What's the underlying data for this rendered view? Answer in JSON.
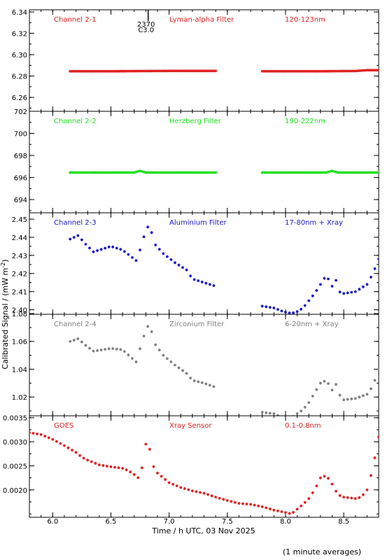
{
  "chart_data": {
    "type": "scatter",
    "xlabel": "Time / h UTC, 03 Nov 2025",
    "ylabel": "Calibrated Signal / (mW m",
    "ylabel_sup": "-2",
    "ylabel_close": ")",
    "footnote": "(1 minute averages)",
    "xlim": [
      5.8,
      8.8
    ],
    "xticks": [
      6.0,
      6.5,
      7.0,
      7.5,
      8.0,
      8.5
    ],
    "xtick_labels": [
      "6.0",
      "6.5",
      "7.0",
      "7.5",
      "8.0",
      "8.5"
    ],
    "marker_annotation": {
      "x": 6.82,
      "line1": "2370",
      "line2": "C3.0"
    },
    "panels": [
      {
        "name": "Channel 2-1",
        "filter": "Lyman-alpha Filter",
        "band": "120-123nm",
        "color": "#e02020",
        "ylim": [
          6.247,
          6.342
        ],
        "yticks": [
          6.26,
          6.28,
          6.3,
          6.32,
          6.34
        ],
        "ytick_labels": [
          "6.26",
          "6.28",
          "6.30",
          "6.32",
          "6.34"
        ],
        "series": [
          {
            "x": [
              6.15,
              6.5,
              7.0,
              7.4
            ],
            "y": [
              6.2845,
              6.2845,
              6.2848,
              6.2848
            ]
          },
          {
            "x": [
              7.8,
              8.3,
              8.6,
              8.7,
              8.8
            ],
            "y": [
              6.2845,
              6.2845,
              6.2847,
              6.2855,
              6.2855
            ]
          }
        ]
      },
      {
        "name": "Channel 2-2",
        "filter": "Herzberg Filter",
        "band": "190-222nm",
        "color": "#20e020",
        "ylim": [
          692.8,
          702.0
        ],
        "yticks": [
          694,
          696,
          698,
          700,
          702
        ],
        "ytick_labels": [
          "694",
          "696",
          "698",
          "700",
          "702"
        ],
        "series": [
          {
            "x": [
              6.15,
              6.7,
              6.75,
              6.8,
              7.4
            ],
            "y": [
              696.45,
              696.45,
              696.6,
              696.45,
              696.45
            ]
          },
          {
            "x": [
              7.8,
              8.35,
              8.4,
              8.45,
              8.8
            ],
            "y": [
              696.45,
              696.45,
              696.6,
              696.45,
              696.45
            ]
          }
        ]
      },
      {
        "name": "Channel 2-3",
        "filter": "Aluminium Filter",
        "band": "17-80nm + Xray",
        "color": "#1818c8",
        "ylim": [
          2.3975,
          2.4535
        ],
        "yticks": [
          2.4,
          2.41,
          2.42,
          2.43,
          2.44,
          2.45
        ],
        "ytick_labels": [
          "2.40",
          "2.41",
          "2.42",
          "2.43",
          "2.44",
          "2.45"
        ],
        "series": [
          {
            "x": [
              6.15,
              6.22,
              6.27,
              6.35,
              6.5,
              6.6,
              6.68,
              6.72,
              6.76,
              6.8,
              6.83,
              6.88,
              6.95,
              7.05,
              7.15,
              7.2,
              7.3,
              7.4
            ],
            "y": [
              2.439,
              2.441,
              2.437,
              2.432,
              2.435,
              2.433,
              2.429,
              2.427,
              2.435,
              2.444,
              2.447,
              2.436,
              2.431,
              2.426,
              2.422,
              2.417,
              2.415,
              2.413
            ]
          },
          {
            "x": [
              7.8,
              7.9,
              7.98,
              8.05,
              8.1,
              8.15,
              8.2,
              8.25,
              8.3,
              8.35,
              8.4,
              8.43,
              8.46,
              8.5,
              8.6,
              8.7,
              8.75,
              8.8
            ],
            "y": [
              2.402,
              2.401,
              2.399,
              2.398,
              2.399,
              2.401,
              2.405,
              2.409,
              2.414,
              2.419,
              2.413,
              2.417,
              2.41,
              2.409,
              2.41,
              2.414,
              2.42,
              2.428
            ]
          }
        ]
      },
      {
        "name": "Channel 2-4",
        "filter": "Zirconium Filter",
        "band": "6-20nm + Xray",
        "color": "#808080",
        "ylim": [
          1.0065,
          1.0795
        ],
        "yticks": [
          1.02,
          1.04,
          1.06,
          1.08
        ],
        "ytick_labels": [
          "1.02",
          "1.04",
          "1.06",
          "1.08"
        ],
        "series": [
          {
            "x": [
              6.15,
              6.22,
              6.27,
              6.35,
              6.5,
              6.6,
              6.68,
              6.72,
              6.76,
              6.8,
              6.83,
              6.88,
              6.95,
              7.05,
              7.15,
              7.2,
              7.3,
              7.4
            ],
            "y": [
              1.06,
              1.062,
              1.058,
              1.053,
              1.055,
              1.054,
              1.048,
              1.045,
              1.058,
              1.068,
              1.073,
              1.058,
              1.05,
              1.043,
              1.037,
              1.032,
              1.03,
              1.027
            ]
          },
          {
            "x": [
              7.8,
              7.9,
              7.98,
              8.05,
              8.1,
              8.15,
              8.2,
              8.25,
              8.3,
              8.35,
              8.4,
              8.43,
              8.46,
              8.5,
              8.6,
              8.7,
              8.75,
              8.8
            ],
            "y": [
              1.009,
              1.008,
              1.005,
              1.005,
              1.008,
              1.011,
              1.016,
              1.023,
              1.03,
              1.032,
              1.025,
              1.03,
              1.022,
              1.018,
              1.019,
              1.022,
              1.028,
              1.04
            ]
          }
        ]
      },
      {
        "name": "GOES",
        "filter": "Xray Sensor",
        "band": "0.1-0.8nm",
        "color": "#e02020",
        "ylim": [
          0.00143,
          0.00354
        ],
        "yticks": [
          0.002,
          0.0025,
          0.003,
          0.0035
        ],
        "ytick_labels": [
          "0.0020",
          "0.0025",
          "0.0030",
          "0.0035"
        ],
        "series": [
          {
            "x": [
              5.8,
              5.9,
              6.0,
              6.1,
              6.2,
              6.25,
              6.3,
              6.4,
              6.5,
              6.6,
              6.65,
              6.7,
              6.75,
              6.78,
              6.8,
              6.82,
              6.85,
              6.9,
              7.0,
              7.1,
              7.2,
              7.3,
              7.4,
              7.5,
              7.6,
              7.7,
              7.8,
              7.9,
              8.0,
              8.05,
              8.1,
              8.15,
              8.2,
              8.25,
              8.3,
              8.35,
              8.4,
              8.45,
              8.5,
              8.6,
              8.65,
              8.7,
              8.75,
              8.8
            ],
            "y": [
              0.00319,
              0.00315,
              0.00305,
              0.00292,
              0.00278,
              0.00268,
              0.00262,
              0.00252,
              0.00248,
              0.00245,
              0.0024,
              0.00232,
              0.00222,
              0.00265,
              0.00295,
              0.00308,
              0.00255,
              0.00235,
              0.00215,
              0.00205,
              0.00198,
              0.00193,
              0.00185,
              0.00178,
              0.00172,
              0.0017,
              0.00165,
              0.00158,
              0.00153,
              0.0015,
              0.0016,
              0.0017,
              0.00182,
              0.002,
              0.00225,
              0.0023,
              0.00212,
              0.0019,
              0.00185,
              0.00182,
              0.00185,
              0.002,
              0.00245,
              0.0031
            ]
          }
        ]
      }
    ]
  }
}
